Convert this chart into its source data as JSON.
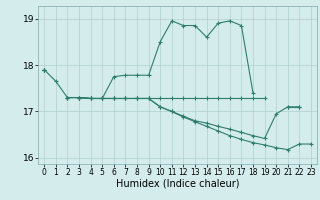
{
  "xlabel": "Humidex (Indice chaleur)",
  "x": [
    0,
    1,
    2,
    3,
    4,
    5,
    6,
    7,
    8,
    9,
    10,
    11,
    12,
    13,
    14,
    15,
    16,
    17,
    18,
    19,
    20,
    21,
    22,
    23
  ],
  "line1": [
    17.9,
    17.65,
    17.3,
    17.3,
    17.28,
    17.28,
    17.75,
    17.78,
    17.78,
    17.78,
    18.5,
    18.95,
    18.85,
    18.85,
    18.6,
    18.9,
    18.95,
    18.85,
    17.4,
    null,
    null,
    null,
    null,
    null
  ],
  "line2": [
    17.9,
    null,
    17.3,
    17.3,
    17.28,
    17.28,
    17.28,
    17.28,
    17.28,
    17.28,
    17.28,
    17.28,
    17.28,
    17.28,
    17.28,
    17.28,
    17.28,
    17.28,
    17.28,
    17.28,
    null,
    17.1,
    17.1,
    null
  ],
  "line3": [
    17.9,
    null,
    17.3,
    17.3,
    17.28,
    17.28,
    17.28,
    17.28,
    17.28,
    17.28,
    17.1,
    17.0,
    16.9,
    16.8,
    16.75,
    16.68,
    16.62,
    16.55,
    16.48,
    16.42,
    16.95,
    17.1,
    17.1,
    null
  ],
  "line4": [
    17.9,
    null,
    17.3,
    17.3,
    17.28,
    17.28,
    17.28,
    17.28,
    17.28,
    17.28,
    17.1,
    17.0,
    16.88,
    16.78,
    16.68,
    16.58,
    16.48,
    16.4,
    16.33,
    16.28,
    16.22,
    16.18,
    16.3,
    16.3
  ],
  "line_color": "#2e7d6e",
  "bg_color": "#d4ecec",
  "grid_color": "#afd0d0",
  "ylim": [
    15.87,
    19.27
  ],
  "yticks": [
    16,
    17,
    18,
    19
  ],
  "xticks": [
    0,
    1,
    2,
    3,
    4,
    5,
    6,
    7,
    8,
    9,
    10,
    11,
    12,
    13,
    14,
    15,
    16,
    17,
    18,
    19,
    20,
    21,
    22,
    23
  ],
  "marker": "+"
}
